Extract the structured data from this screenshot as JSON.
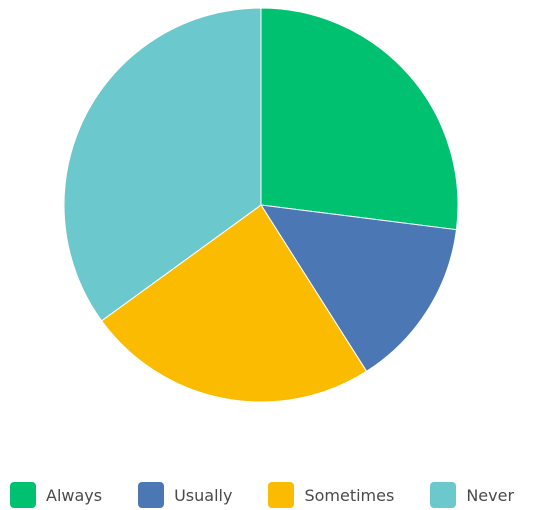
{
  "chart_data": {
    "type": "pie",
    "title": "",
    "start_angle_deg": 0,
    "direction": "clockwise",
    "legend_position": "bottom",
    "slices": [
      {
        "label": "Always",
        "value": 27.0,
        "color": "#00c170"
      },
      {
        "label": "Usually",
        "value": 14.0,
        "color": "#4b78b4"
      },
      {
        "label": "Sometimes",
        "value": 24.0,
        "color": "#fabb00"
      },
      {
        "label": "Never",
        "value": 35.0,
        "color": "#6bc8cd"
      }
    ]
  }
}
